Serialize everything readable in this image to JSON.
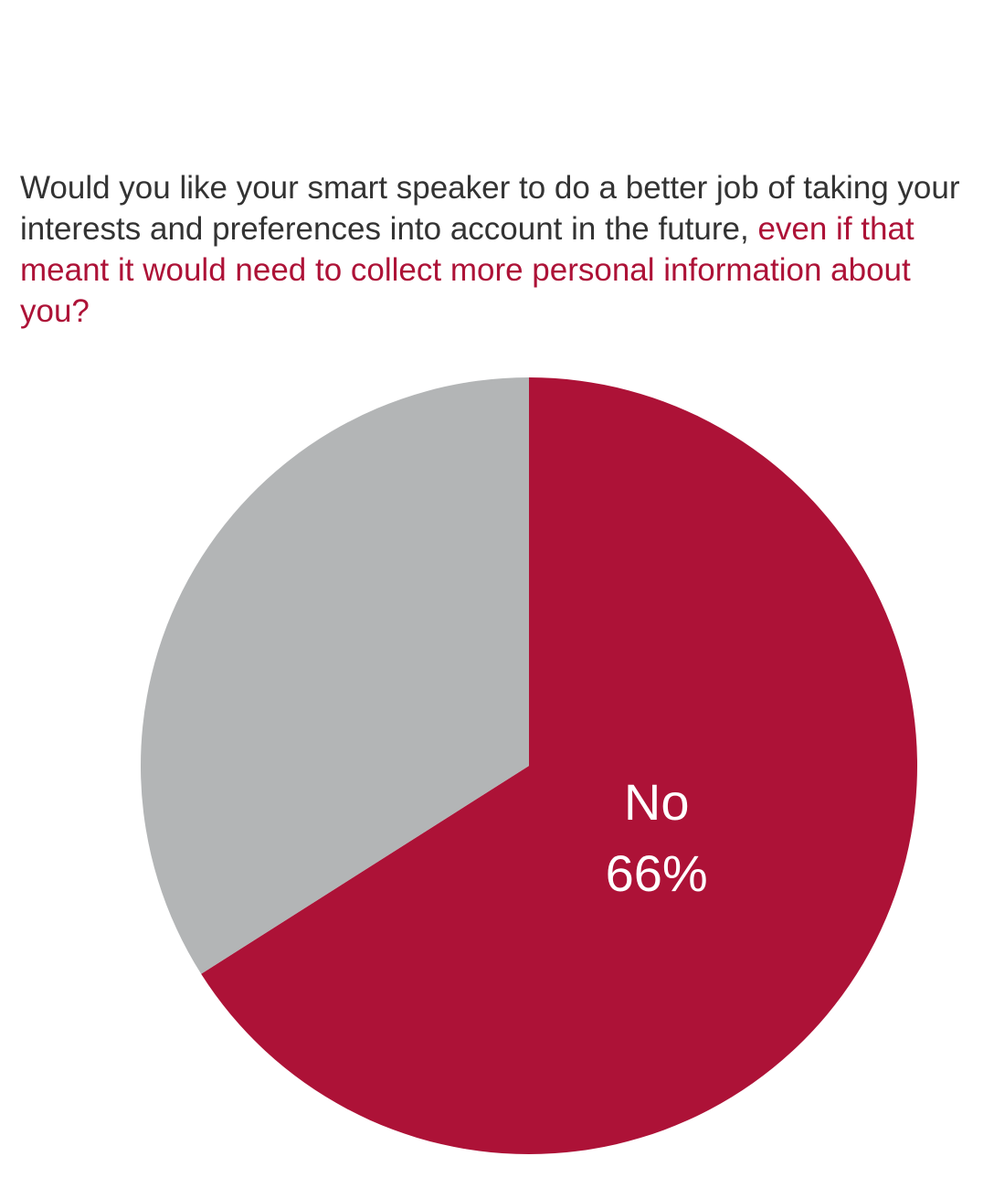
{
  "question": {
    "main": "Would you like your smart speaker to do a better job of taking your interests and preferences into account in the future,",
    "emphasis": "even if that meant it would need to collect more personal information about you?"
  },
  "colors": {
    "question_text": "#333333",
    "question_emphasis": "#ad1237",
    "no_slice": "#ad1237",
    "other_slice": "#b3b5b6",
    "slice_label": "#ffffff"
  },
  "chart_data": {
    "type": "pie",
    "slices": [
      {
        "label": "No",
        "value": 66,
        "value_label": "66%",
        "color": "#ad1237",
        "labeled": true
      },
      {
        "label": "",
        "value": 34,
        "value_label": "",
        "color": "#b3b5b6",
        "labeled": false
      }
    ],
    "start": "12 o'clock",
    "direction": "clockwise",
    "legend": "none"
  }
}
